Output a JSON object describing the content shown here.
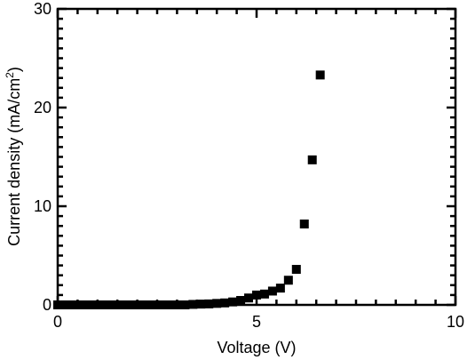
{
  "chart_data": {
    "type": "scatter",
    "xlabel": "Voltage (V)",
    "ylabel_main": "Current density (mA/cm",
    "ylabel_sup": "2",
    "ylabel_close": ")",
    "xlim": [
      0,
      10
    ],
    "ylim": [
      0,
      30
    ],
    "x_ticks": [
      0,
      5,
      10
    ],
    "y_ticks": [
      0,
      10,
      20,
      30
    ],
    "grid": false,
    "marker_color": "#000000",
    "series": [
      {
        "x": [
          0.0,
          0.2,
          0.4,
          0.6,
          0.8,
          1.0,
          1.2,
          1.4,
          1.6,
          1.8,
          2.0,
          2.2,
          2.4,
          2.6,
          2.8,
          3.0,
          3.2,
          3.4,
          3.6,
          3.8,
          4.0,
          4.2,
          4.4,
          4.6,
          4.8,
          5.0,
          5.2,
          5.4,
          5.6,
          5.8,
          6.0,
          6.2,
          6.4,
          6.6
        ],
        "y": [
          0.0,
          0.0,
          0.0,
          0.0,
          0.0,
          0.0,
          0.0,
          0.0,
          0.0,
          0.0,
          0.0,
          0.0,
          0.0,
          0.0,
          0.0,
          0.0,
          0.0,
          0.05,
          0.08,
          0.1,
          0.15,
          0.2,
          0.3,
          0.45,
          0.7,
          1.0,
          1.1,
          1.4,
          1.7,
          2.5,
          3.6,
          8.2,
          14.7,
          23.3
        ]
      }
    ]
  }
}
